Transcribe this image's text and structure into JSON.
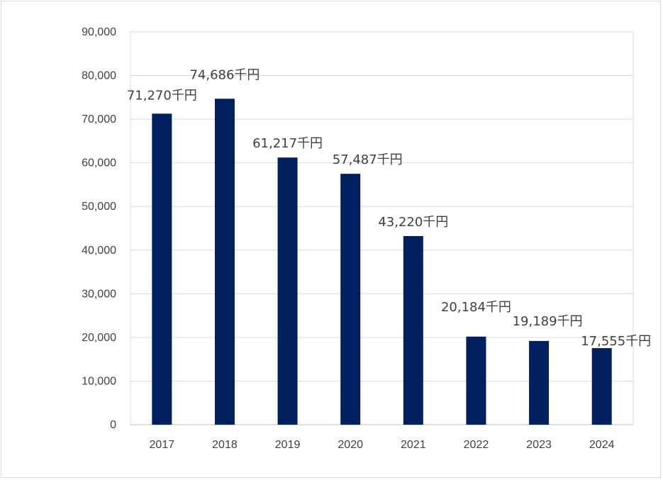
{
  "chart_data": {
    "type": "bar",
    "categories": [
      "2017",
      "2018",
      "2019",
      "2020",
      "2021",
      "2022",
      "2023",
      "2024"
    ],
    "values": [
      71270,
      74686,
      61217,
      57487,
      43220,
      20184,
      19189,
      17555
    ],
    "data_labels": [
      "71,270千円",
      "74,686千円",
      "61,217千円",
      "57,487千円",
      "43,220千円",
      "20,184千円",
      "19,189千円",
      "17,555千円"
    ],
    "y_ticks": [
      "0",
      "10,000",
      "20,000",
      "30,000",
      "40,000",
      "50,000",
      "60,000",
      "70,000",
      "80,000",
      "90,000"
    ],
    "ylim": [
      0,
      90000
    ],
    "ytick_step": 10000,
    "title": "",
    "xlabel": "",
    "ylabel": "",
    "grid": true,
    "legend": "none",
    "bar_color": "#002060",
    "gridline_color": "#d9d9d9"
  }
}
